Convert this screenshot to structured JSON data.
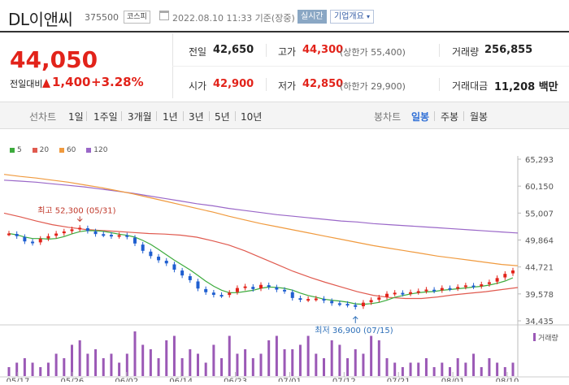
{
  "header": {
    "stock_name": "DL이앤씨",
    "stock_code": "375500",
    "market_badge": "코스피",
    "timestamp": "2022.08.10 11:33 기준(장중)",
    "realtime_label": "실시간",
    "company_info_label": "기업개요",
    "company_info_chevron": "chevron-down-icon"
  },
  "summary": {
    "current_price": "44,050",
    "change_label": "전일대비",
    "change_value": "1,400",
    "change_percent": "+3.28%",
    "up_color": "#e2231a",
    "stats": {
      "prev_close_label": "전일",
      "prev_close": "42,650",
      "open_label": "시가",
      "open": "42,900",
      "high_label": "고가",
      "high": "44,300",
      "upper_limit": "(상한가 55,400)",
      "low_label": "저가",
      "low": "42,850",
      "lower_limit": "(하한가 29,900)",
      "volume_label": "거래량",
      "volume": "256,855",
      "amount_label": "거래대금",
      "amount": "11,208 백만"
    }
  },
  "toolbar": {
    "line_chart_label": "선차트",
    "periods": [
      "1일",
      "1주일",
      "3개월",
      "1년",
      "3년",
      "5년",
      "10년"
    ],
    "candle_label": "봉차트",
    "candle_periods": [
      "일봉",
      "주봉",
      "월봉"
    ],
    "active_candle": "일봉"
  },
  "chart_data": {
    "type": "candlestick",
    "legend": [
      {
        "name": "5",
        "color": "#3cab3c"
      },
      {
        "name": "20",
        "color": "#e05a4f"
      },
      {
        "name": "60",
        "color": "#f09a3e"
      },
      {
        "name": "120",
        "color": "#9a67c8"
      }
    ],
    "y_ticks": [
      "65,293",
      "60,150",
      "55,007",
      "49,864",
      "44,721",
      "39,578",
      "34,435"
    ],
    "y_range": [
      34435,
      65293
    ],
    "x_ticks": [
      "05/17",
      "05/26",
      "06/02",
      "06/14",
      "06/23",
      "07/01",
      "07/12",
      "07/21",
      "08/01",
      "08/10"
    ],
    "annotations": {
      "high": "최고 52,300 (05/31)",
      "low": "최저 36,900 (07/15)"
    },
    "volume_label": "거래량",
    "closes": [
      51100,
      50600,
      49600,
      49300,
      50100,
      50600,
      51100,
      51500,
      51900,
      52200,
      51600,
      51000,
      50900,
      50600,
      50800,
      50500,
      49200,
      47800,
      46800,
      46000,
      45400,
      44200,
      43100,
      42200,
      40600,
      39900,
      39400,
      39300,
      39800,
      40700,
      41000,
      40500,
      41300,
      40900,
      40400,
      40100,
      38800,
      38500,
      38600,
      38700,
      38300,
      37800,
      37700,
      37500,
      37100,
      37900,
      38400,
      38900,
      39600,
      39800,
      39600,
      39900,
      40100,
      40400,
      40200,
      40700,
      40600,
      40900,
      41200,
      41000,
      41400,
      41800,
      42600,
      43400,
      44050
    ],
    "volumes": [
      2,
      3,
      4,
      3,
      2,
      3,
      5,
      4,
      7,
      8,
      5,
      6,
      4,
      5,
      3,
      5,
      10,
      7,
      6,
      4,
      8,
      9,
      4,
      6,
      5,
      3,
      7,
      4,
      9,
      5,
      6,
      4,
      5,
      8,
      9,
      6,
      6,
      7,
      9,
      5,
      4,
      8,
      7,
      4,
      6,
      5,
      9,
      8,
      4,
      3,
      2,
      3,
      3,
      4,
      2,
      3,
      2,
      4,
      3,
      5,
      2,
      4,
      3,
      2,
      3
    ],
    "ma60": [
      62400,
      62000,
      61700,
      61300,
      60900,
      60400,
      59900,
      59300,
      58700,
      58000,
      57300,
      56600,
      55900,
      55200,
      54400,
      53700,
      53000,
      52400,
      51800,
      51200,
      50600,
      50000,
      49400,
      48800,
      48300,
      47800,
      47300,
      46800,
      46400,
      46000,
      45600,
      45200,
      44950
    ],
    "ma120": [
      61300,
      61100,
      60900,
      60600,
      60300,
      60000,
      59600,
      59200,
      58800,
      58300,
      57800,
      57300,
      56800,
      56400,
      55900,
      55500,
      55100,
      54700,
      54400,
      54100,
      53800,
      53500,
      53300,
      53000,
      52800,
      52600,
      52400,
      52200,
      52000,
      51800,
      51600,
      51400,
      51200
    ],
    "ma20": [
      55000,
      54300,
      53500,
      52800,
      52300,
      51900,
      51700,
      51500,
      51300,
      51100,
      51000,
      50800,
      50400,
      49700,
      48900,
      47800,
      46500,
      45200,
      43900,
      42800,
      41800,
      40900,
      40000,
      39300,
      38900,
      38700,
      38700,
      39000,
      39400,
      39700,
      40000,
      40400,
      40800
    ]
  }
}
